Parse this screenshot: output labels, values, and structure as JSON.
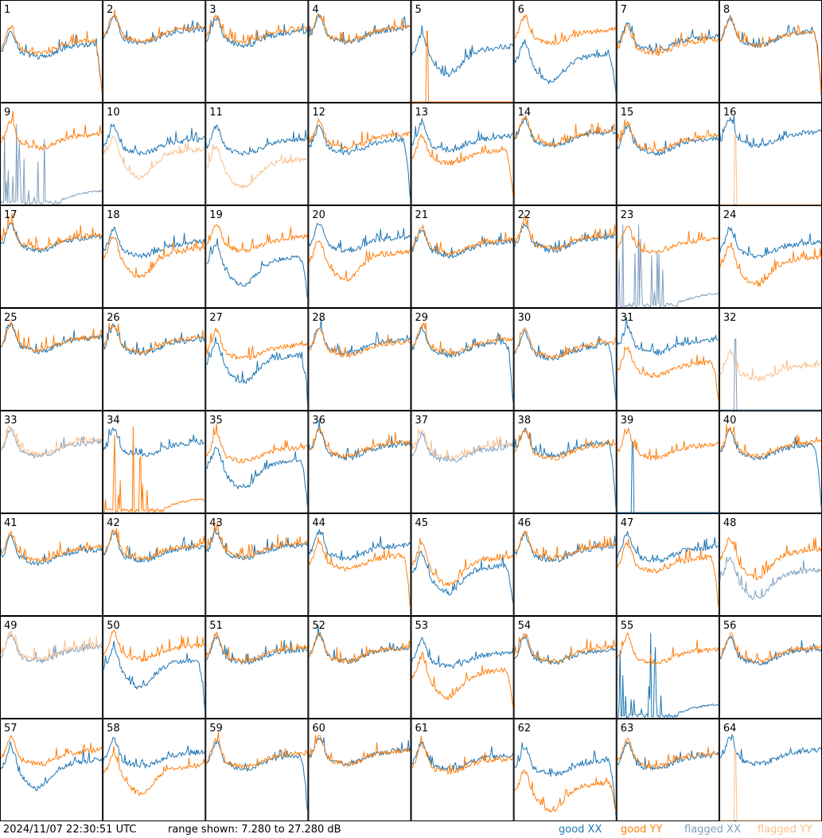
{
  "footer": {
    "timestamp": "2024/11/07 22:30:51 UTC",
    "range_text": "range shown: 7.280 to 27.280 dB",
    "legend": [
      "good XX",
      "good YY",
      "flagged XX",
      "flagged YY"
    ]
  },
  "colors": {
    "good_xx": "#1f77b4",
    "good_yy": "#ff7f0e",
    "flagged_xx": "#7f9fbf",
    "flagged_yy": "#f8c08f",
    "grid": "#000000"
  },
  "chart_data": {
    "type": "line",
    "grid": {
      "rows": 8,
      "cols": 8
    },
    "ylim": [
      7.28,
      27.28
    ],
    "yunit": "dB",
    "tiles": [
      {
        "label": "1",
        "xx": {
          "status": "good",
          "shape": "rolloff",
          "level": 0.48
        },
        "yy": {
          "status": "good",
          "shape": "rolloff",
          "level": 0.52
        }
      },
      {
        "label": "2",
        "xx": {
          "status": "good",
          "shape": "normal",
          "level": 0.62
        },
        "yy": {
          "status": "good",
          "shape": "normal",
          "level": 0.64
        }
      },
      {
        "label": "3",
        "xx": {
          "status": "good",
          "shape": "normal",
          "level": 0.6
        },
        "yy": {
          "status": "good",
          "shape": "normal",
          "level": 0.63
        }
      },
      {
        "label": "4",
        "xx": {
          "status": "good",
          "shape": "normal",
          "level": 0.63
        },
        "yy": {
          "status": "good",
          "shape": "normal",
          "level": 0.64
        }
      },
      {
        "label": "5",
        "xx": {
          "status": "good",
          "shape": "dip",
          "level": 0.45
        },
        "yy": {
          "status": "good",
          "shape": "spike",
          "level": 0.0
        }
      },
      {
        "label": "6",
        "xx": {
          "status": "good",
          "shape": "rolloff_dip",
          "level": 0.38
        },
        "yy": {
          "status": "good",
          "shape": "normal",
          "level": 0.62
        }
      },
      {
        "label": "7",
        "xx": {
          "status": "good",
          "shape": "normal",
          "level": 0.55
        },
        "yy": {
          "status": "good",
          "shape": "normal",
          "level": 0.52
        }
      },
      {
        "label": "8",
        "xx": {
          "status": "good",
          "shape": "rolloff",
          "level": 0.6
        },
        "yy": {
          "status": "good",
          "shape": "rolloff",
          "level": 0.6
        }
      },
      {
        "label": "9",
        "xx": {
          "status": "flagged",
          "shape": "noisy_low",
          "level": 0.1
        },
        "yy": {
          "status": "good",
          "shape": "normal",
          "level": 0.6
        }
      },
      {
        "label": "10",
        "xx": {
          "status": "good",
          "shape": "normal",
          "level": 0.55
        },
        "yy": {
          "status": "flagged",
          "shape": "dip",
          "level": 0.45
        }
      },
      {
        "label": "11",
        "xx": {
          "status": "good",
          "shape": "normal",
          "level": 0.55
        },
        "yy": {
          "status": "flagged",
          "shape": "dip",
          "level": 0.35
        }
      },
      {
        "label": "12",
        "xx": {
          "status": "good",
          "shape": "rolloff",
          "level": 0.55
        },
        "yy": {
          "status": "good",
          "shape": "normal",
          "level": 0.6
        }
      },
      {
        "label": "13",
        "xx": {
          "status": "good",
          "shape": "normal",
          "level": 0.58
        },
        "yy": {
          "status": "good",
          "shape": "rolloff",
          "level": 0.45
        }
      },
      {
        "label": "14",
        "xx": {
          "status": "good",
          "shape": "normal",
          "level": 0.62
        },
        "yy": {
          "status": "good",
          "shape": "normal",
          "level": 0.64
        }
      },
      {
        "label": "15",
        "xx": {
          "status": "good",
          "shape": "normal",
          "level": 0.55
        },
        "yy": {
          "status": "good",
          "shape": "normal",
          "level": 0.58
        }
      },
      {
        "label": "16",
        "xx": {
          "status": "good",
          "shape": "normal",
          "level": 0.62
        },
        "yy": {
          "status": "flagged",
          "shape": "spike",
          "level": 0.0
        }
      },
      {
        "label": "17",
        "xx": {
          "status": "good",
          "shape": "normal",
          "level": 0.6
        },
        "yy": {
          "status": "good",
          "shape": "normal",
          "level": 0.62
        }
      },
      {
        "label": "18",
        "xx": {
          "status": "good",
          "shape": "normal",
          "level": 0.55
        },
        "yy": {
          "status": "good",
          "shape": "dip",
          "level": 0.48
        }
      },
      {
        "label": "19",
        "xx": {
          "status": "good",
          "shape": "rolloff_dip",
          "level": 0.4
        },
        "yy": {
          "status": "good",
          "shape": "normal",
          "level": 0.6
        }
      },
      {
        "label": "20",
        "xx": {
          "status": "good",
          "shape": "normal",
          "level": 0.6
        },
        "yy": {
          "status": "good",
          "shape": "dip",
          "level": 0.45
        }
      },
      {
        "label": "21",
        "xx": {
          "status": "good",
          "shape": "normal",
          "level": 0.55
        },
        "yy": {
          "status": "good",
          "shape": "normal",
          "level": 0.57
        }
      },
      {
        "label": "22",
        "xx": {
          "status": "good",
          "shape": "normal",
          "level": 0.6
        },
        "yy": {
          "status": "good",
          "shape": "normal",
          "level": 0.62
        }
      },
      {
        "label": "23",
        "xx": {
          "status": "flagged",
          "shape": "noisy_low",
          "level": 0.1
        },
        "yy": {
          "status": "good",
          "shape": "normal",
          "level": 0.58
        }
      },
      {
        "label": "24",
        "xx": {
          "status": "good",
          "shape": "normal",
          "level": 0.55
        },
        "yy": {
          "status": "good",
          "shape": "dip",
          "level": 0.4
        }
      },
      {
        "label": "25",
        "xx": {
          "status": "good",
          "shape": "normal",
          "level": 0.62
        },
        "yy": {
          "status": "good",
          "shape": "normal",
          "level": 0.63
        }
      },
      {
        "label": "26",
        "xx": {
          "status": "good",
          "shape": "normal",
          "level": 0.6
        },
        "yy": {
          "status": "good",
          "shape": "normal",
          "level": 0.62
        }
      },
      {
        "label": "27",
        "xx": {
          "status": "good",
          "shape": "rolloff_dip",
          "level": 0.45
        },
        "yy": {
          "status": "good",
          "shape": "normal",
          "level": 0.55
        }
      },
      {
        "label": "28",
        "xx": {
          "status": "good",
          "shape": "normal",
          "level": 0.6
        },
        "yy": {
          "status": "good",
          "shape": "normal",
          "level": 0.58
        }
      },
      {
        "label": "29",
        "xx": {
          "status": "good",
          "shape": "rolloff",
          "level": 0.58
        },
        "yy": {
          "status": "good",
          "shape": "normal",
          "level": 0.6
        }
      },
      {
        "label": "30",
        "xx": {
          "status": "good",
          "shape": "rolloff",
          "level": 0.55
        },
        "yy": {
          "status": "good",
          "shape": "normal",
          "level": 0.57
        }
      },
      {
        "label": "31",
        "xx": {
          "status": "good",
          "shape": "normal",
          "level": 0.6
        },
        "yy": {
          "status": "good",
          "shape": "rolloff",
          "level": 0.38
        }
      },
      {
        "label": "32",
        "xx": {
          "status": "flagged",
          "shape": "spike",
          "level": 0.0
        },
        "yy": {
          "status": "flagged",
          "shape": "normal",
          "level": 0.35
        }
      },
      {
        "label": "33",
        "xx": {
          "status": "flagged",
          "shape": "normal",
          "level": 0.6
        },
        "yy": {
          "status": "flagged",
          "shape": "normal",
          "level": 0.62
        }
      },
      {
        "label": "34",
        "xx": {
          "status": "good",
          "shape": "normal",
          "level": 0.6
        },
        "yy": {
          "status": "good",
          "shape": "noisy_low",
          "level": 0.12
        }
      },
      {
        "label": "35",
        "xx": {
          "status": "good",
          "shape": "rolloff_dip",
          "level": 0.42
        },
        "yy": {
          "status": "good",
          "shape": "normal",
          "level": 0.55
        }
      },
      {
        "label": "36",
        "xx": {
          "status": "good",
          "shape": "normal",
          "level": 0.58
        },
        "yy": {
          "status": "good",
          "shape": "normal",
          "level": 0.6
        }
      },
      {
        "label": "37",
        "xx": {
          "status": "flagged",
          "shape": "normal",
          "level": 0.55
        },
        "yy": {
          "status": "flagged",
          "shape": "normal",
          "level": 0.58
        }
      },
      {
        "label": "38",
        "xx": {
          "status": "good",
          "shape": "rolloff",
          "level": 0.6
        },
        "yy": {
          "status": "good",
          "shape": "normal",
          "level": 0.58
        }
      },
      {
        "label": "39",
        "xx": {
          "status": "good",
          "shape": "spike",
          "level": 0.0
        },
        "yy": {
          "status": "good",
          "shape": "normal",
          "level": 0.58
        }
      },
      {
        "label": "40",
        "xx": {
          "status": "good",
          "shape": "rolloff",
          "level": 0.58
        },
        "yy": {
          "status": "good",
          "shape": "normal",
          "level": 0.6
        }
      },
      {
        "label": "41",
        "xx": {
          "status": "good",
          "shape": "normal",
          "level": 0.55
        },
        "yy": {
          "status": "good",
          "shape": "normal",
          "level": 0.58
        }
      },
      {
        "label": "42",
        "xx": {
          "status": "good",
          "shape": "normal",
          "level": 0.58
        },
        "yy": {
          "status": "good",
          "shape": "normal",
          "level": 0.6
        }
      },
      {
        "label": "43",
        "xx": {
          "status": "good",
          "shape": "normal",
          "level": 0.6
        },
        "yy": {
          "status": "good",
          "shape": "normal",
          "level": 0.62
        }
      },
      {
        "label": "44",
        "xx": {
          "status": "good",
          "shape": "normal",
          "level": 0.6
        },
        "yy": {
          "status": "good",
          "shape": "rolloff",
          "level": 0.5
        }
      },
      {
        "label": "45",
        "xx": {
          "status": "good",
          "shape": "rolloff_dip",
          "level": 0.4
        },
        "yy": {
          "status": "good",
          "shape": "dip",
          "level": 0.48
        }
      },
      {
        "label": "46",
        "xx": {
          "status": "good",
          "shape": "normal",
          "level": 0.58
        },
        "yy": {
          "status": "good",
          "shape": "normal",
          "level": 0.6
        }
      },
      {
        "label": "47",
        "xx": {
          "status": "good",
          "shape": "normal",
          "level": 0.58
        },
        "yy": {
          "status": "good",
          "shape": "rolloff",
          "level": 0.48
        }
      },
      {
        "label": "48",
        "xx": {
          "status": "flagged",
          "shape": "dip",
          "level": 0.35
        },
        "yy": {
          "status": "good",
          "shape": "dip",
          "level": 0.55
        }
      },
      {
        "label": "49",
        "xx": {
          "status": "flagged",
          "shape": "normal",
          "level": 0.6
        },
        "yy": {
          "status": "flagged",
          "shape": "normal",
          "level": 0.62
        }
      },
      {
        "label": "50",
        "xx": {
          "status": "good",
          "shape": "rolloff_dip",
          "level": 0.48
        },
        "yy": {
          "status": "good",
          "shape": "normal",
          "level": 0.62
        }
      },
      {
        "label": "51",
        "xx": {
          "status": "good",
          "shape": "normal",
          "level": 0.58
        },
        "yy": {
          "status": "good",
          "shape": "normal",
          "level": 0.6
        }
      },
      {
        "label": "52",
        "xx": {
          "status": "good",
          "shape": "normal",
          "level": 0.6
        },
        "yy": {
          "status": "good",
          "shape": "normal",
          "level": 0.6
        }
      },
      {
        "label": "53",
        "xx": {
          "status": "good",
          "shape": "normal",
          "level": 0.55
        },
        "yy": {
          "status": "good",
          "shape": "rolloff_dip",
          "level": 0.38
        }
      },
      {
        "label": "54",
        "xx": {
          "status": "good",
          "shape": "normal",
          "level": 0.58
        },
        "yy": {
          "status": "good",
          "shape": "normal",
          "level": 0.6
        }
      },
      {
        "label": "55",
        "xx": {
          "status": "good",
          "shape": "noisy_low",
          "level": 0.08
        },
        "yy": {
          "status": "good",
          "shape": "normal",
          "level": 0.58
        }
      },
      {
        "label": "56",
        "xx": {
          "status": "good",
          "shape": "normal",
          "level": 0.58
        },
        "yy": {
          "status": "good",
          "shape": "normal",
          "level": 0.6
        }
      },
      {
        "label": "57",
        "xx": {
          "status": "good",
          "shape": "dip",
          "level": 0.5
        },
        "yy": {
          "status": "good",
          "shape": "normal",
          "level": 0.6
        }
      },
      {
        "label": "58",
        "xx": {
          "status": "good",
          "shape": "normal",
          "level": 0.58
        },
        "yy": {
          "status": "good",
          "shape": "dip",
          "level": 0.45
        }
      },
      {
        "label": "59",
        "xx": {
          "status": "good",
          "shape": "rolloff",
          "level": 0.55
        },
        "yy": {
          "status": "good",
          "shape": "normal",
          "level": 0.57
        }
      },
      {
        "label": "60",
        "xx": {
          "status": "good",
          "shape": "normal",
          "level": 0.6
        },
        "yy": {
          "status": "good",
          "shape": "normal",
          "level": 0.6
        }
      },
      {
        "label": "61",
        "xx": {
          "status": "good",
          "shape": "normal",
          "level": 0.55
        },
        "yy": {
          "status": "good",
          "shape": "normal",
          "level": 0.52
        }
      },
      {
        "label": "62",
        "xx": {
          "status": "good",
          "shape": "rolloff",
          "level": 0.5
        },
        "yy": {
          "status": "good",
          "shape": "rolloff_dip",
          "level": 0.28
        }
      },
      {
        "label": "63",
        "xx": {
          "status": "good",
          "shape": "normal",
          "level": 0.55
        },
        "yy": {
          "status": "good",
          "shape": "normal",
          "level": 0.57
        }
      },
      {
        "label": "64",
        "xx": {
          "status": "good",
          "shape": "normal",
          "level": 0.6
        },
        "yy": {
          "status": "flagged",
          "shape": "spike",
          "level": 0.0
        }
      }
    ]
  }
}
